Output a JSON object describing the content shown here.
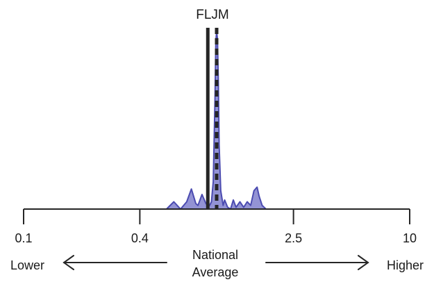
{
  "chart_data": {
    "type": "area",
    "title": "FLJM",
    "x_scale": "log",
    "xlim": [
      0.1,
      10
    ],
    "ticks": [
      {
        "value": 0.1,
        "label": "0.1"
      },
      {
        "value": 0.4,
        "label": "0.4"
      },
      {
        "value": 2.5,
        "label": "2.5"
      },
      {
        "value": 10,
        "label": "10"
      }
    ],
    "reference_line": {
      "value": 0.9,
      "style": "solid"
    },
    "median_line": {
      "value": 1.0,
      "style": "dashed"
    },
    "density_color": "#4b4bb0",
    "density_fill": "#8080cc",
    "line_color": "#262626",
    "density": {
      "x": [
        0.55,
        0.6,
        0.65,
        0.7,
        0.74,
        0.78,
        0.8,
        0.84,
        0.88,
        0.9,
        0.92,
        0.94,
        0.96,
        0.98,
        0.99,
        1.0,
        1.01,
        1.02,
        1.03,
        1.05,
        1.08,
        1.1,
        1.14,
        1.18,
        1.22,
        1.26,
        1.32,
        1.38,
        1.44,
        1.5,
        1.56,
        1.62,
        1.66,
        1.72,
        1.8
      ],
      "y": [
        0,
        0.04,
        0,
        0.04,
        0.11,
        0.03,
        0.02,
        0.08,
        0.03,
        0.02,
        0.02,
        0.04,
        0.15,
        0.6,
        0.92,
        0.97,
        0.93,
        0.7,
        0.35,
        0.1,
        0.02,
        0.05,
        0.01,
        0,
        0.05,
        0.01,
        0.04,
        0.01,
        0.04,
        0.02,
        0.1,
        0.12,
        0.07,
        0.02,
        0
      ]
    },
    "annotations": {
      "lower": "Lower",
      "center_line1": "National",
      "center_line2": "Average",
      "higher": "Higher"
    }
  }
}
